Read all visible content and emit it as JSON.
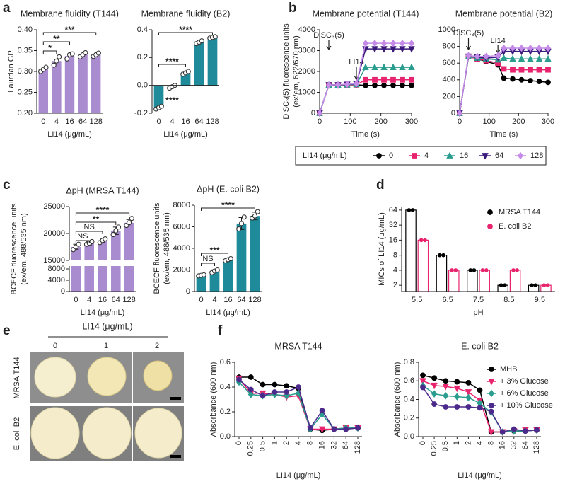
{
  "panel_labels": [
    "a",
    "b",
    "c",
    "d",
    "e",
    "f"
  ],
  "chart_data": [
    {
      "type": "bar",
      "title": "Membrane fluidity (T144)",
      "categories": [
        "0",
        "4",
        "16",
        "64",
        "128"
      ],
      "values": [
        0.305,
        0.325,
        0.337,
        0.34,
        0.34
      ],
      "points": [
        [
          0.3,
          0.305,
          0.31
        ],
        [
          0.315,
          0.325,
          0.335
        ],
        [
          0.33,
          0.34,
          0.342
        ],
        [
          0.335,
          0.34,
          0.345
        ],
        [
          0.336,
          0.34,
          0.344
        ]
      ],
      "color": "#a98bcf",
      "ylim": [
        0.2,
        0.4
      ],
      "yticks": [
        {
          "value": 0.2,
          "label": "0.20"
        },
        {
          "value": 0.25,
          "label": "0.25"
        },
        {
          "value": 0.3,
          "label": "0.30"
        },
        {
          "value": 0.35,
          "label": "0.35"
        },
        {
          "value": 0.4,
          "label": "0.40"
        }
      ],
      "ylabel": [
        "Laurdan GP"
      ],
      "xlabel": "LI14 (μg/mL)",
      "comparisons": [
        {
          "between": [
            "0",
            "4"
          ],
          "label": "*"
        },
        {
          "between": [
            "0",
            "16"
          ],
          "label": "**"
        },
        {
          "between": [
            "0",
            "128"
          ],
          "label": "***"
        }
      ]
    },
    {
      "type": "bar",
      "title": "Membrane fluidity (B2)",
      "categories": [
        "0",
        "4",
        "16",
        "64",
        "128"
      ],
      "values": [
        -0.16,
        -0.01,
        0.09,
        0.31,
        0.345
      ],
      "points": [
        [
          -0.17,
          -0.16,
          -0.15
        ],
        [
          -0.02,
          -0.01,
          0.0
        ],
        [
          0.08,
          0.09,
          0.1
        ],
        [
          0.3,
          0.31,
          0.32
        ],
        [
          0.34,
          0.345,
          0.35
        ]
      ],
      "color": "#1f8a9a",
      "ylim": [
        -0.2,
        0.4
      ],
      "yticks": [
        -0.2,
        {
          "value": 0,
          "label": "0.0"
        },
        0.2,
        0.4
      ],
      "xlabel": "LI14 (μg/mL)",
      "comparisons": [
        {
          "between": [
            "4"
          ],
          "label": "****"
        },
        {
          "between": [
            "0",
            "16"
          ],
          "label": "****"
        },
        {
          "between": [
            "0",
            "128"
          ],
          "label": "****"
        }
      ]
    },
    {
      "type": "line",
      "title": "Membrane potential (T144)",
      "x": [
        0,
        30,
        60,
        90,
        120,
        150,
        180,
        210,
        240,
        270,
        300
      ],
      "xlim": [
        0,
        300
      ],
      "xticks": [
        0,
        100,
        200,
        300
      ],
      "ylim": [
        0,
        4000
      ],
      "yticks": [
        0,
        1000,
        2000,
        3000,
        4000
      ],
      "xlabel": "Time (s)",
      "ylabel": [
        "DiSC₃(5) fluorescence units",
        "(ex/em, 622/670 nm)"
      ],
      "annotations": [
        {
          "text": "DiSC₃(5)",
          "x": 30
        },
        {
          "text": "LI14",
          "x": 120
        }
      ],
      "legend": "below",
      "legend_title": "LI14 (μg/mL)",
      "series": [
        {
          "name": "0",
          "color": "#000000",
          "marker": "circle",
          "values": [
            0,
            1350,
            1350,
            1350,
            1360,
            1330,
            1330,
            1330,
            1330,
            1330,
            1330
          ]
        },
        {
          "name": "4",
          "color": "#e8246f",
          "marker": "square",
          "values": [
            0,
            1350,
            1350,
            1350,
            1360,
            1600,
            1600,
            1600,
            1600,
            1600,
            1600
          ]
        },
        {
          "name": "16",
          "color": "#2a9d8f",
          "marker": "triangle",
          "values": [
            0,
            1350,
            1350,
            1360,
            1380,
            2200,
            2200,
            2200,
            2200,
            2200,
            2200
          ]
        },
        {
          "name": "64",
          "color": "#3a1a7a",
          "marker": "triangle-down",
          "values": [
            0,
            1350,
            1350,
            1380,
            1400,
            3080,
            3080,
            3080,
            3080,
            3080,
            3080
          ]
        },
        {
          "name": "128",
          "color": "#c58be8",
          "marker": "diamond",
          "values": [
            0,
            1350,
            1360,
            1390,
            1420,
            3350,
            3350,
            3350,
            3350,
            3350,
            3350
          ]
        }
      ]
    },
    {
      "type": "line",
      "title": "Membrane potential (B2)",
      "x": [
        0,
        30,
        60,
        90,
        130,
        150,
        180,
        210,
        240,
        270,
        300
      ],
      "xlim": [
        0,
        300
      ],
      "xticks": [
        0,
        100,
        200,
        300
      ],
      "ylim": [
        0,
        1000
      ],
      "yticks": [
        0,
        200,
        400,
        600,
        800,
        1000
      ],
      "xlabel": "Time (s)",
      "annotations": [
        {
          "text": "DiSC₃(5)",
          "x": 30
        },
        {
          "text": "LI14",
          "x": 130
        }
      ],
      "series": [
        {
          "name": "0",
          "color": "#000000",
          "marker": "circle",
          "values": [
            0,
            680,
            650,
            620,
            580,
            420,
            410,
            400,
            390,
            380,
            370
          ]
        },
        {
          "name": "4",
          "color": "#e8246f",
          "marker": "square",
          "values": [
            0,
            680,
            650,
            630,
            600,
            530,
            520,
            520,
            520,
            520,
            520
          ]
        },
        {
          "name": "16",
          "color": "#2a9d8f",
          "marker": "triangle",
          "values": [
            0,
            680,
            660,
            650,
            640,
            660,
            650,
            650,
            650,
            650,
            650
          ]
        },
        {
          "name": "64",
          "color": "#3a1a7a",
          "marker": "triangle-down",
          "values": [
            0,
            680,
            670,
            660,
            670,
            740,
            740,
            740,
            740,
            740,
            740
          ]
        },
        {
          "name": "128",
          "color": "#c58be8",
          "marker": "diamond",
          "values": [
            0,
            690,
            680,
            680,
            690,
            780,
            780,
            780,
            780,
            780,
            780
          ]
        }
      ]
    },
    {
      "type": "bar",
      "title": "ΔpH (MRSA T144)",
      "categories": [
        "0",
        "4",
        "16",
        "64",
        "128"
      ],
      "values": [
        17500,
        18200,
        18700,
        20500,
        22000
      ],
      "errors": [
        500,
        300,
        400,
        700,
        600
      ],
      "points": [
        [
          17000,
          17500,
          18000
        ],
        [
          18000,
          18200,
          18500
        ],
        [
          18300,
          18700,
          19000
        ],
        [
          19800,
          20500,
          21200
        ],
        [
          21500,
          22000,
          22800
        ]
      ],
      "color": "#a98bcf",
      "ylim": [
        0,
        25000
      ],
      "ybreak": [
        9000,
        15000
      ],
      "yticks": [
        0,
        4000,
        8000,
        15000,
        20000,
        25000
      ],
      "ylabel": [
        "BCECF fluorescence units",
        "(ex/em, 488/535 nm)"
      ],
      "xlabel": "LI14 (μg/mL)",
      "comparisons": [
        {
          "between": [
            "0",
            "4"
          ],
          "label": "NS"
        },
        {
          "between": [
            "0",
            "16"
          ],
          "label": "NS"
        },
        {
          "between": [
            "0",
            "64"
          ],
          "label": "**"
        },
        {
          "between": [
            "0",
            "128"
          ],
          "label": "****"
        }
      ]
    },
    {
      "type": "bar",
      "title": "ΔpH (E. coli B2)",
      "categories": [
        "0",
        "4",
        "16",
        "64",
        "128"
      ],
      "values": [
        1500,
        1900,
        2950,
        6300,
        7000
      ],
      "errors": [
        50,
        120,
        100,
        550,
        350
      ],
      "points": [
        [
          1450,
          1500,
          1550
        ],
        [
          1750,
          1900,
          2000
        ],
        [
          2850,
          2950,
          3050
        ],
        [
          5800,
          6300,
          6900
        ],
        [
          6800,
          7000,
          7400
        ]
      ],
      "color": "#1f8a9a",
      "ylim": [
        0,
        8000
      ],
      "yticks": [
        0,
        2000,
        4000,
        6000,
        8000
      ],
      "ylabel": [
        "BCECF fluorescence units",
        "(ex/em, 488/535 nm)"
      ],
      "xlabel": "LI14 (μg/mL)",
      "comparisons": [
        {
          "between": [
            "0",
            "4"
          ],
          "label": "NS"
        },
        {
          "between": [
            "0",
            "16"
          ],
          "label": "***"
        },
        {
          "between": [
            "0",
            "128"
          ],
          "label": "****"
        }
      ]
    },
    {
      "type": "bar",
      "categories": [
        "5.5",
        "6.5",
        "7.5",
        "8.5",
        "9.5"
      ],
      "log": true,
      "ylim": [
        1.5,
        75
      ],
      "yticks": [
        2,
        4,
        8,
        16,
        32,
        64
      ],
      "xlabel": "pH",
      "ylabel": [
        "MICs of LI14 (μg/mL)"
      ],
      "legend": "upper right",
      "series": [
        {
          "name": "MRSA T144",
          "color": "#000000",
          "marker": "circle",
          "values": [
            64,
            8,
            4,
            2,
            2
          ]
        },
        {
          "name": "E. coli B2",
          "color": "#e8246f",
          "marker": "circle",
          "values": [
            16,
            4,
            4,
            4,
            2
          ]
        }
      ]
    },
    {
      "type": "line",
      "title": "MRSA T144",
      "categories": [
        "0",
        "0.25",
        "0.5",
        "1",
        "2",
        "4",
        "8",
        "16",
        "32",
        "64",
        "128"
      ],
      "xtick_rotation": -90,
      "ylim": [
        0,
        0.6
      ],
      "yticks": [
        {
          "value": 0,
          "label": "0.0"
        },
        0.2,
        0.4,
        0.6
      ],
      "xlabel": "LI14 (μg/mL)",
      "ylabel": [
        "Absorbance (600 nm)"
      ],
      "series": [
        {
          "name": "MHB",
          "color": "#000000",
          "marker": "circle",
          "values": [
            0.48,
            0.48,
            0.42,
            0.42,
            0.41,
            0.39,
            0.06,
            0.05,
            0.06,
            0.06,
            0.07
          ]
        },
        {
          "name": "+ 3% Glucose",
          "color": "#e8246f",
          "marker": "triangle-down",
          "values": [
            0.47,
            0.35,
            0.35,
            0.34,
            0.32,
            0.33,
            0.06,
            0.06,
            0.06,
            0.07,
            0.07
          ]
        },
        {
          "name": "+ 6% Glucose",
          "color": "#2a9d8f",
          "marker": "diamond",
          "values": [
            0.44,
            0.34,
            0.33,
            0.34,
            0.33,
            0.35,
            0.06,
            0.18,
            0.06,
            0.07,
            0.07
          ]
        },
        {
          "name": "+ 10% Glucose",
          "color": "#4b2a8c",
          "marker": "circle",
          "values": [
            0.46,
            0.38,
            0.33,
            0.36,
            0.36,
            0.4,
            0.07,
            0.21,
            0.06,
            0.06,
            0.07
          ]
        }
      ]
    },
    {
      "type": "line",
      "title": "E. coli B2",
      "categories": [
        "0",
        "0.25",
        "0.5",
        "1",
        "2",
        "4",
        "8",
        "16",
        "32",
        "64",
        "128"
      ],
      "xtick_rotation": -90,
      "ylim": [
        0,
        0.8
      ],
      "yticks": [
        {
          "value": 0,
          "label": "0.0"
        },
        0.2,
        0.4,
        0.6,
        0.8
      ],
      "xlabel": "LI14 (μg/mL)",
      "ylabel": [
        "Absorbance (600 nm)"
      ],
      "legend": "right",
      "series": [
        {
          "name": "MHB",
          "color": "#000000",
          "marker": "circle",
          "values": [
            0.66,
            0.63,
            0.6,
            0.59,
            0.58,
            0.5,
            0.05,
            0.05,
            0.06,
            0.06,
            0.07
          ]
        },
        {
          "name": "+ 3% Glucose",
          "color": "#e8246f",
          "marker": "triangle-down",
          "values": [
            0.6,
            0.55,
            0.54,
            0.52,
            0.48,
            0.39,
            0.05,
            0.05,
            0.06,
            0.07,
            0.07
          ]
        },
        {
          "name": "+ 6% Glucose",
          "color": "#2a9d8f",
          "marker": "diamond",
          "values": [
            0.55,
            0.46,
            0.44,
            0.43,
            0.42,
            0.36,
            0.26,
            0.05,
            0.06,
            0.06,
            0.07
          ]
        },
        {
          "name": "+ 10% Glucose",
          "color": "#4b2a8c",
          "marker": "circle",
          "values": [
            0.53,
            0.35,
            0.32,
            0.32,
            0.32,
            0.31,
            0.27,
            0.05,
            0.08,
            0.06,
            0.07
          ]
        }
      ]
    }
  ],
  "panel_e": {
    "header": "LI14 (μg/mL)",
    "columns": [
      "0",
      "1",
      "2"
    ],
    "rows": [
      "MRSA T144",
      "E. coli B2"
    ]
  }
}
